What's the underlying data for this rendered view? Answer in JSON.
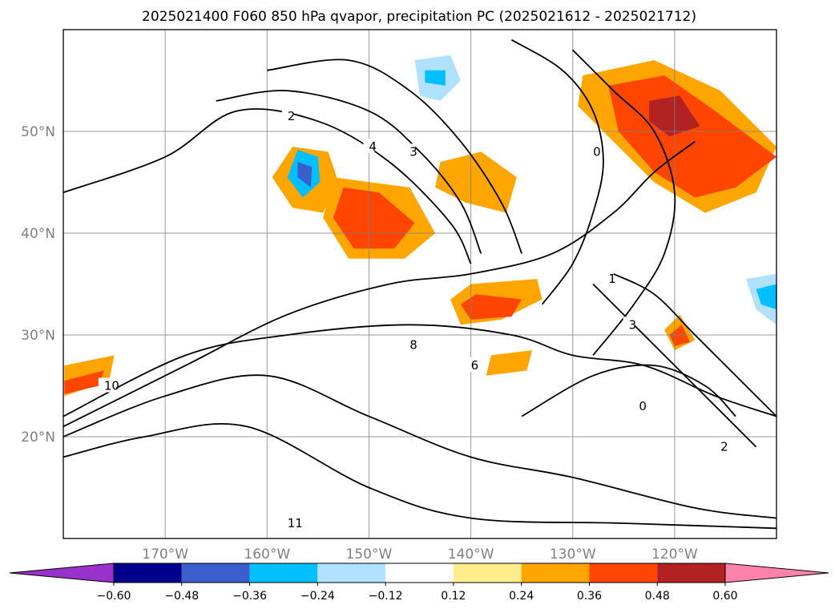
{
  "chart_data": {
    "type": "contour map",
    "title": "2025021400 F060 850 hPa qvapor, precipitation PC (2025021612 - 2025021712)",
    "map": {
      "lon_range": [
        -180,
        -110
      ],
      "lat_range": [
        10,
        60
      ],
      "lat_ticks": [
        {
          "value": 20,
          "label": "20°N"
        },
        {
          "value": 30,
          "label": "30°N"
        },
        {
          "value": 40,
          "label": "40°N"
        },
        {
          "value": 50,
          "label": "50°N"
        }
      ],
      "lon_ticks": [
        {
          "value": -170,
          "label": "170°W"
        },
        {
          "value": -160,
          "label": "160°W"
        },
        {
          "value": -150,
          "label": "150°W"
        },
        {
          "value": -140,
          "label": "140°W"
        },
        {
          "value": -130,
          "label": "130°W"
        },
        {
          "value": -120,
          "label": "120°W"
        }
      ],
      "grid": true
    },
    "colorbar": {
      "extend": "both",
      "colors": [
        "#9932cc",
        "#00008b",
        "#3a5fcd",
        "#00bfff",
        "#b0e2ff",
        "#ffffff",
        "#ffec8b",
        "#ffa500",
        "#ff4500",
        "#b22222",
        "#ff82ab"
      ],
      "ticks": [
        {
          "value": -0.6,
          "label": "−0.60"
        },
        {
          "value": -0.48,
          "label": "−0.48"
        },
        {
          "value": -0.36,
          "label": "−0.36"
        },
        {
          "value": -0.24,
          "label": "−0.24"
        },
        {
          "value": -0.12,
          "label": "−0.12"
        },
        {
          "value": 0.12,
          "label": "0.12"
        },
        {
          "value": 0.24,
          "label": "0.24"
        },
        {
          "value": 0.36,
          "label": "0.36"
        },
        {
          "value": 0.48,
          "label": "0.48"
        },
        {
          "value": 0.6,
          "label": "0.60"
        }
      ]
    },
    "shaded_regions": [
      {
        "level": 0.24,
        "poly": [
          [
            -157.5,
            48.5
          ],
          [
            -154,
            48
          ],
          [
            -153,
            45
          ],
          [
            -154.5,
            42
          ],
          [
            -157.5,
            42.5
          ],
          [
            -159.5,
            45.5
          ]
        ]
      },
      {
        "level": -0.36,
        "poly": [
          [
            -157,
            48.2
          ],
          [
            -155,
            47.5
          ],
          [
            -154.8,
            45
          ],
          [
            -156.5,
            43.5
          ],
          [
            -158,
            45.5
          ]
        ]
      },
      {
        "level": -0.48,
        "poly": [
          [
            -157,
            47
          ],
          [
            -155.6,
            46.5
          ],
          [
            -155.7,
            44.5
          ],
          [
            -157,
            45.5
          ]
        ]
      },
      {
        "level": 0.24,
        "poly": [
          [
            -153.5,
            45.5
          ],
          [
            -146,
            44.5
          ],
          [
            -143.5,
            40
          ],
          [
            -146.5,
            37.5
          ],
          [
            -152,
            37.5
          ],
          [
            -154.5,
            41.5
          ]
        ]
      },
      {
        "level": 0.36,
        "poly": [
          [
            -152.5,
            44.5
          ],
          [
            -149,
            44
          ],
          [
            -145.5,
            41
          ],
          [
            -147.5,
            38.5
          ],
          [
            -151.5,
            38.5
          ],
          [
            -153.5,
            41.5
          ]
        ]
      },
      {
        "level": 0.24,
        "poly": [
          [
            -140,
            35
          ],
          [
            -133.5,
            35.5
          ],
          [
            -133,
            33.5
          ],
          [
            -137,
            31.5
          ],
          [
            -141,
            31
          ],
          [
            -142,
            33.5
          ]
        ]
      },
      {
        "level": 0.36,
        "poly": [
          [
            -139.5,
            34
          ],
          [
            -135,
            33.5
          ],
          [
            -136,
            31.8
          ],
          [
            -140,
            31.5
          ],
          [
            -141,
            33
          ]
        ]
      },
      {
        "level": 0.24,
        "poly": [
          [
            -143,
            47
          ],
          [
            -139,
            48
          ],
          [
            -135.5,
            45.5
          ],
          [
            -136.5,
            42
          ],
          [
            -140.5,
            43
          ],
          [
            -143.5,
            44.5
          ]
        ]
      },
      {
        "level": -0.24,
        "poly": [
          [
            -145.5,
            57
          ],
          [
            -142,
            57.5
          ],
          [
            -141,
            55
          ],
          [
            -143,
            53
          ],
          [
            -145,
            53.5
          ]
        ]
      },
      {
        "level": -0.36,
        "poly": [
          [
            -144.5,
            56
          ],
          [
            -142.5,
            56
          ],
          [
            -142.5,
            54.5
          ],
          [
            -144.5,
            54.8
          ]
        ]
      },
      {
        "level": 0.24,
        "poly": [
          [
            -129,
            55.5
          ],
          [
            -122,
            57
          ],
          [
            -115.5,
            54
          ],
          [
            -110,
            48.5
          ],
          [
            -112,
            44
          ],
          [
            -117,
            42
          ],
          [
            -122,
            45
          ],
          [
            -126,
            49
          ],
          [
            -129.5,
            52.5
          ]
        ]
      },
      {
        "level": 0.36,
        "poly": [
          [
            -126.5,
            54.5
          ],
          [
            -121,
            55.5
          ],
          [
            -116,
            52
          ],
          [
            -110,
            47.5
          ],
          [
            -114,
            44.5
          ],
          [
            -118,
            43.5
          ],
          [
            -122,
            46
          ],
          [
            -125.5,
            50
          ]
        ]
      },
      {
        "level": 0.48,
        "poly": [
          [
            -122.5,
            53
          ],
          [
            -119.5,
            53.5
          ],
          [
            -117.5,
            50.5
          ],
          [
            -120.5,
            49.5
          ],
          [
            -122.5,
            51
          ]
        ]
      },
      {
        "level": 0.24,
        "poly": [
          [
            -138,
            28
          ],
          [
            -134,
            28.5
          ],
          [
            -134.5,
            26.5
          ],
          [
            -138.5,
            26
          ]
        ]
      },
      {
        "level": 0.24,
        "poly": [
          [
            -179.9,
            27
          ],
          [
            -175,
            28
          ],
          [
            -175.5,
            25.5
          ],
          [
            -179.9,
            24
          ]
        ]
      },
      {
        "level": 0.36,
        "poly": [
          [
            -179.9,
            25.5
          ],
          [
            -176,
            26.5
          ],
          [
            -176.5,
            25
          ],
          [
            -179.9,
            24.2
          ]
        ]
      },
      {
        "level": 0.24,
        "poly": [
          [
            -121,
            30.5
          ],
          [
            -119.5,
            32
          ],
          [
            -118,
            29.5
          ],
          [
            -120,
            28.5
          ]
        ]
      },
      {
        "level": 0.36,
        "poly": [
          [
            -120.5,
            30
          ],
          [
            -119.3,
            31
          ],
          [
            -118.5,
            29.3
          ],
          [
            -120,
            28.9
          ]
        ]
      },
      {
        "level": -0.24,
        "poly": [
          [
            -113,
            35.5
          ],
          [
            -110,
            36
          ],
          [
            -110,
            31
          ],
          [
            -112,
            32.5
          ]
        ]
      },
      {
        "level": -0.36,
        "poly": [
          [
            -112,
            34.5
          ],
          [
            -110,
            35
          ],
          [
            -110,
            32.5
          ],
          [
            -111.5,
            33
          ]
        ]
      }
    ],
    "contours": [
      {
        "label": "2",
        "line": [
          [
            -180,
            44
          ],
          [
            -170,
            47.5
          ],
          [
            -163,
            52
          ],
          [
            -155,
            51
          ],
          [
            -148,
            47
          ],
          [
            -142,
            41
          ],
          [
            -140,
            37
          ]
        ],
        "label_at": [
          -158,
          51.5
        ]
      },
      {
        "label": "3",
        "line": [
          [
            -165,
            53
          ],
          [
            -158,
            54
          ],
          [
            -150,
            52
          ],
          [
            -145,
            48
          ],
          [
            -141,
            43
          ],
          [
            -139,
            38
          ]
        ],
        "label_at": [
          -146,
          48
        ]
      },
      {
        "label": "4",
        "line": [
          [
            -160,
            56
          ],
          [
            -152,
            57
          ],
          [
            -146,
            54
          ],
          [
            -141,
            49
          ],
          [
            -137,
            43
          ],
          [
            -135,
            38
          ]
        ],
        "label_at": [
          -150,
          48.5
        ]
      },
      {
        "label": "6",
        "line": [
          [
            -180,
            21
          ],
          [
            -168,
            27
          ],
          [
            -158,
            32
          ],
          [
            -148,
            35
          ],
          [
            -140,
            36
          ],
          [
            -132,
            38
          ],
          [
            -126,
            42
          ],
          [
            -122,
            46
          ],
          [
            -118,
            49
          ]
        ],
        "label_at": [
          -140,
          27
        ]
      },
      {
        "label": "8",
        "line": [
          [
            -180,
            22
          ],
          [
            -168,
            28
          ],
          [
            -158,
            30
          ],
          [
            -146,
            31
          ],
          [
            -136,
            30
          ],
          [
            -130,
            28
          ],
          [
            -123,
            27
          ],
          [
            -116,
            24
          ],
          [
            -110,
            22
          ]
        ],
        "label_at": [
          -146,
          29
        ]
      },
      {
        "label": "10",
        "line": [
          [
            -180,
            20
          ],
          [
            -170,
            24
          ],
          [
            -160,
            26
          ],
          [
            -150,
            22
          ],
          [
            -140,
            18
          ],
          [
            -130,
            16
          ],
          [
            -118,
            13
          ],
          [
            -110,
            12
          ]
        ],
        "label_at": [
          -176,
          25
        ]
      },
      {
        "label": "11",
        "line": [
          [
            -180,
            18
          ],
          [
            -172,
            20
          ],
          [
            -162,
            21
          ],
          [
            -150,
            15
          ],
          [
            -140,
            12
          ],
          [
            -125,
            11.5
          ],
          [
            -110,
            11
          ]
        ],
        "label_at": [
          -158,
          11.5
        ]
      },
      {
        "label": "0",
        "line": [
          [
            -136,
            59
          ],
          [
            -131,
            56
          ],
          [
            -128,
            52
          ],
          [
            -127,
            47
          ],
          [
            -128,
            42
          ],
          [
            -130,
            37
          ],
          [
            -133,
            33
          ]
        ],
        "label_at": [
          -128,
          48
        ]
      },
      {
        "label": "1",
        "line": [
          [
            -130,
            58
          ],
          [
            -126,
            54
          ],
          [
            -122,
            50
          ],
          [
            -120,
            44
          ],
          [
            -121,
            38
          ],
          [
            -124,
            33
          ],
          [
            -128,
            28
          ]
        ],
        "label_at": [
          -126.5,
          35.5
        ]
      },
      {
        "label": "2",
        "line": [
          [
            -126,
            36
          ],
          [
            -122,
            34
          ],
          [
            -118,
            30
          ],
          [
            -114,
            26
          ],
          [
            -110,
            22
          ]
        ],
        "label_at": [
          -115.5,
          19
        ]
      },
      {
        "label": "3",
        "line": [
          [
            -128,
            35
          ],
          [
            -124,
            31
          ],
          [
            -120,
            27
          ],
          [
            -116,
            23
          ],
          [
            -112,
            19
          ]
        ],
        "label_at": [
          -124.5,
          31
        ]
      },
      {
        "label": "0",
        "line": [
          [
            -135,
            22
          ],
          [
            -128,
            26
          ],
          [
            -122,
            27
          ],
          [
            -117,
            25
          ],
          [
            -114,
            22
          ]
        ],
        "label_at": [
          -123.5,
          23
        ]
      }
    ]
  }
}
